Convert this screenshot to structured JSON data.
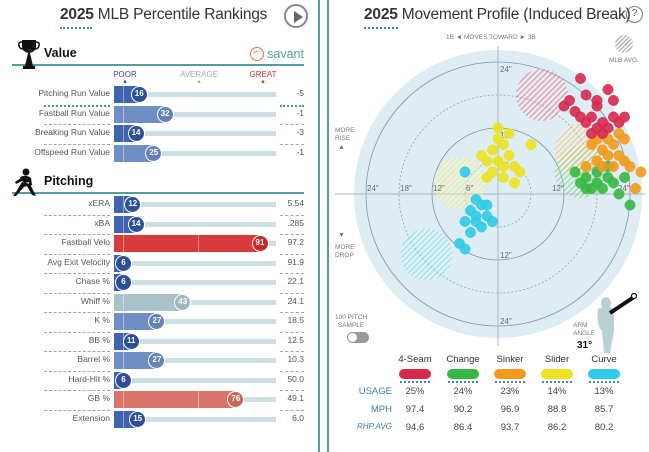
{
  "left": {
    "title_year": "2025",
    "title_text": " MLB Percentile Rankings",
    "play_button": "play-icon",
    "value_section": {
      "label": "Value",
      "icon": "trophy-icon",
      "savant_label": "savant",
      "scale": {
        "poor": "POOR",
        "average": "AVERAGE",
        "great": "GREAT"
      },
      "rows": [
        {
          "label": "Pitching Run Value",
          "percentile": 16,
          "value": "-5"
        },
        {
          "label": "Fastball Run Value",
          "percentile": 32,
          "value": "-1"
        },
        {
          "label": "Breaking Run Value",
          "percentile": 14,
          "value": "-3"
        },
        {
          "label": "Offspeed Run Value",
          "percentile": 25,
          "value": "-1"
        }
      ]
    },
    "pitching_section": {
      "label": "Pitching",
      "icon": "pitcher-icon",
      "rows": [
        {
          "label": "xERA",
          "percentile": 12,
          "value": "5.54"
        },
        {
          "label": "xBA",
          "percentile": 14,
          "value": ".285"
        },
        {
          "label": "Fastball Velo",
          "percentile": 91,
          "value": "97.2"
        },
        {
          "label": "Avg Exit Velocity",
          "percentile": 6,
          "value": "91.9"
        },
        {
          "label": "Chase %",
          "percentile": 6,
          "value": "22.1"
        },
        {
          "label": "Whiff %",
          "percentile": 43,
          "value": "24.1"
        },
        {
          "label": "K %",
          "percentile": 27,
          "value": "18.5"
        },
        {
          "label": "BB %",
          "percentile": 11,
          "value": "12.5"
        },
        {
          "label": "Barrel %",
          "percentile": 27,
          "value": "10.3"
        },
        {
          "label": "Hard-Hit %",
          "percentile": 6,
          "value": "50.0"
        },
        {
          "label": "GB %",
          "percentile": 76,
          "value": "49.1"
        },
        {
          "label": "Extension",
          "percentile": 15,
          "value": "6.0"
        }
      ]
    }
  },
  "right": {
    "title_year": "2025",
    "title_text": " Movement Profile (Induced Break)",
    "help": "?",
    "direction_label": "1B ◄  MOVES TOWARD  ► 3B",
    "mlb_avg_label": "MLB AVG.",
    "more_rise": "MORE\nRISE",
    "more_drop": "MORE\nDROP",
    "ring_labels": {
      "top24": "24\"",
      "top12": "12\"",
      "bottom12": "12\"",
      "bottom24": "24\"",
      "left24": "24\"",
      "left18": "18\"",
      "left12": "12\"",
      "left6": "6\"",
      "right12": "12\"",
      "right24": "24\""
    },
    "sample_label": "100 PITCH\nSAMPLE",
    "arm_angle_label": "ARM\nANGLE",
    "arm_angle_value": "31°",
    "stat_labels": {
      "usage": "USAGE",
      "mph": "MPH",
      "rhp_avg": "RHP AVG"
    },
    "pitches": [
      {
        "name": "4-Seam",
        "color": "#d6294e",
        "usage": "25%",
        "mph": "97.4",
        "rhp_avg": "94.6",
        "avg_hb": 8,
        "avg_ivb": 18
      },
      {
        "name": "Change",
        "color": "#35b843",
        "usage": "24%",
        "mph": "90.2",
        "rhp_avg": "86.4",
        "avg_hb": 15,
        "avg_ivb": 4
      },
      {
        "name": "Sinker",
        "color": "#f39a1c",
        "usage": "23%",
        "mph": "96.9",
        "rhp_avg": "93.7",
        "avg_hb": 15,
        "avg_ivb": 8
      },
      {
        "name": "Slider",
        "color": "#ece21f",
        "usage": "14%",
        "mph": "88.8",
        "rhp_avg": "86.2",
        "avg_hb": -7,
        "avg_ivb": 2
      },
      {
        "name": "Curve",
        "color": "#2fcbe8",
        "usage": "13%",
        "mph": "85.7",
        "rhp_avg": "80.2",
        "avg_hb": -13,
        "avg_ivb": -11
      }
    ],
    "scatter": {
      "4-Seam": [
        [
          15,
          21
        ],
        [
          13,
          17
        ],
        [
          18,
          16
        ],
        [
          16,
          18
        ],
        [
          20,
          19
        ],
        [
          17,
          14
        ],
        [
          19,
          13
        ],
        [
          21,
          14
        ],
        [
          18,
          12
        ],
        [
          16,
          13
        ],
        [
          14,
          15
        ],
        [
          17,
          11
        ],
        [
          19,
          11
        ],
        [
          20,
          12
        ],
        [
          22,
          13
        ],
        [
          15,
          14
        ],
        [
          18,
          17
        ],
        [
          21,
          17
        ],
        [
          23,
          14
        ],
        [
          12,
          16
        ]
      ],
      "Sinker": [
        [
          17,
          9
        ],
        [
          19,
          8
        ],
        [
          21,
          9
        ],
        [
          23,
          10
        ],
        [
          20,
          7
        ],
        [
          18,
          6
        ],
        [
          22,
          7
        ],
        [
          19,
          5
        ],
        [
          21,
          5
        ],
        [
          24,
          5
        ],
        [
          16,
          5
        ],
        [
          20,
          10
        ],
        [
          22,
          11
        ],
        [
          18,
          10
        ],
        [
          25,
          1
        ],
        [
          26,
          4
        ],
        [
          23,
          6
        ]
      ],
      "Change": [
        [
          14,
          4
        ],
        [
          16,
          3
        ],
        [
          18,
          2
        ],
        [
          20,
          3
        ],
        [
          17,
          1
        ],
        [
          19,
          1
        ],
        [
          21,
          2
        ],
        [
          22,
          0
        ],
        [
          16,
          1
        ],
        [
          18,
          4
        ],
        [
          20,
          5
        ],
        [
          23,
          3
        ],
        [
          15,
          2
        ],
        [
          24,
          -2
        ]
      ],
      "Slider": [
        [
          -1,
          8
        ],
        [
          1,
          9
        ],
        [
          -2,
          6
        ],
        [
          0,
          6
        ],
        [
          2,
          7
        ],
        [
          -1,
          4
        ],
        [
          1,
          3
        ],
        [
          3,
          5
        ],
        [
          -3,
          7
        ],
        [
          0,
          10
        ],
        [
          2,
          11
        ],
        [
          4,
          4
        ],
        [
          -2,
          3
        ],
        [
          1,
          5
        ],
        [
          6,
          9
        ],
        [
          0,
          12
        ],
        [
          3,
          2
        ]
      ],
      "Curve": [
        [
          -6,
          4
        ],
        [
          -4,
          -1
        ],
        [
          -3,
          -2
        ],
        [
          -5,
          -3
        ],
        [
          -4,
          -4
        ],
        [
          -2,
          -4
        ],
        [
          -6,
          -5
        ],
        [
          -3,
          -6
        ],
        [
          -1,
          -5
        ],
        [
          -5,
          -7
        ],
        [
          -7,
          -9
        ],
        [
          -6,
          -10
        ],
        [
          -2,
          -2
        ],
        [
          -4,
          -5
        ]
      ]
    }
  }
}
